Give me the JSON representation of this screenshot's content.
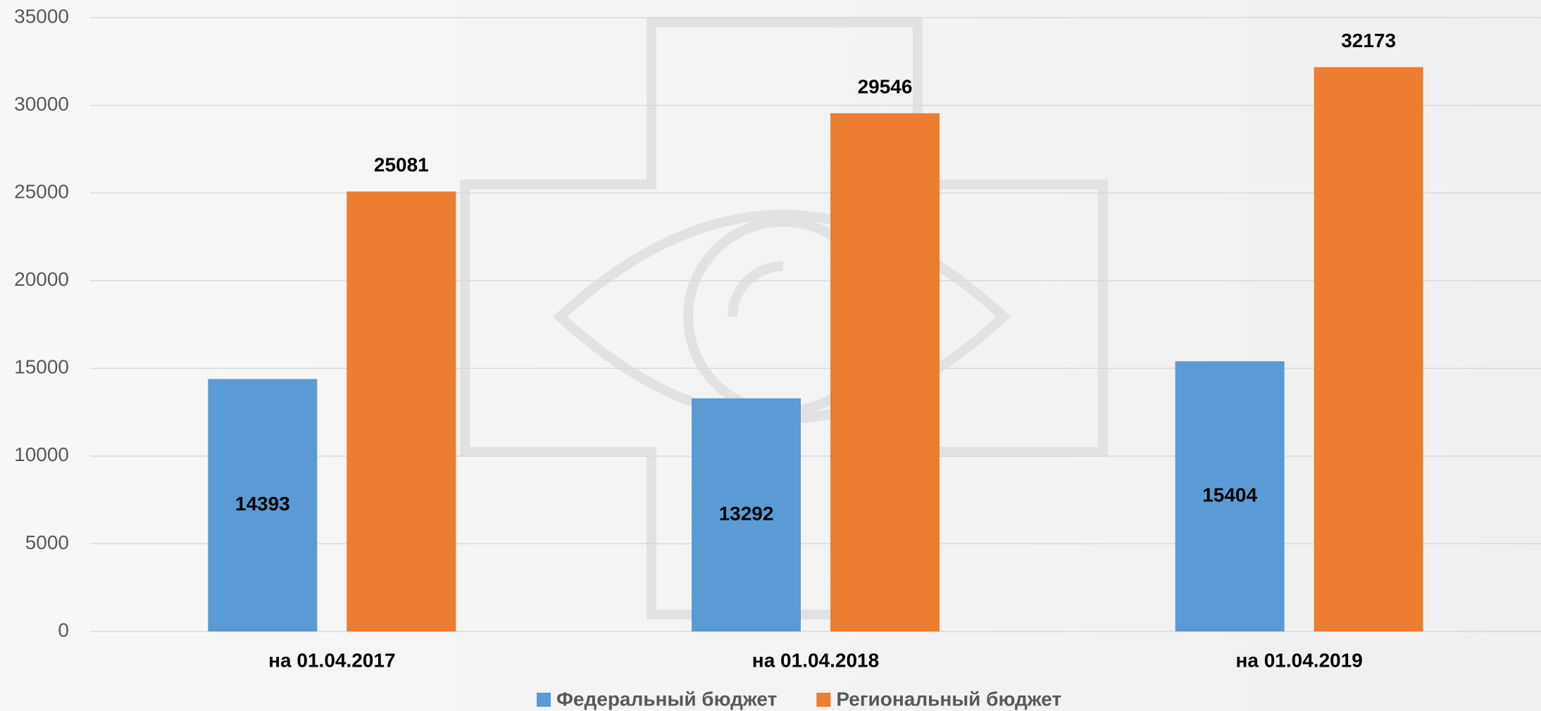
{
  "chart_data": {
    "type": "bar",
    "categories": [
      "на 01.04.2017",
      "на 01.04.2018",
      "на 01.04.2019"
    ],
    "series": [
      {
        "name": "Федеральный бюджет",
        "color": "#5b9bd5",
        "values": [
          14393,
          13292,
          15404
        ]
      },
      {
        "name": "Региональный бюджет",
        "color": "#ed7d31",
        "values": [
          25081,
          29546,
          32173
        ]
      }
    ],
    "ylim": [
      0,
      35000
    ],
    "yticks": [
      0,
      5000,
      10000,
      15000,
      20000,
      25000,
      30000,
      35000
    ],
    "grid": true,
    "legend": "bottom"
  }
}
